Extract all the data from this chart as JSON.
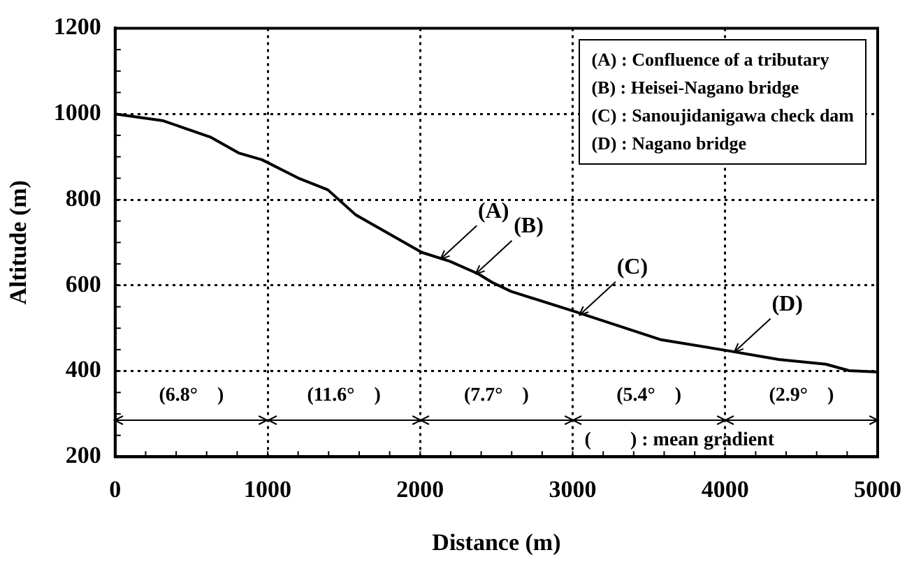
{
  "chart_data": {
    "type": "line",
    "xlabel": "Distance (m)",
    "ylabel": "Altitude (m)",
    "x": [
      0,
      316,
      624,
      809,
      963,
      1209,
      1394,
      1579,
      2010,
      2195,
      2380,
      2472,
      2595,
      3022,
      3581,
      4043,
      4351,
      4660,
      4813,
      4983,
      5000
    ],
    "series": [
      {
        "color": "#000000",
        "values": [
          1000,
          984,
          946,
          909,
          893,
          849,
          823,
          764,
          677,
          656,
          627,
          607,
          586,
          538,
          473,
          446,
          427,
          416,
          401,
          398,
          398
        ]
      }
    ],
    "xlim": [
      0,
      5000
    ],
    "xticks": [
      0,
      1000,
      2000,
      3000,
      4000,
      5000
    ],
    "ylim": [
      200,
      1200
    ],
    "yticks": [
      200,
      400,
      600,
      800,
      1000,
      1200
    ],
    "grid": true,
    "legend": false,
    "marker": "none",
    "line_style": "solid",
    "annotations": [
      {
        "text": "(A)",
        "x": 2133,
        "y": 661
      },
      {
        "text": "(B)",
        "x": 2363,
        "y": 626
      },
      {
        "text": "(C)",
        "x": 3043,
        "y": 530
      },
      {
        "text": "(D)",
        "x": 4059,
        "y": 444
      },
      "(A) : Confluence of a tributary",
      "(B) : Heisei-Nagano bridge",
      "(C) : Sanoujidanigawa check dam",
      "(D) : Nagano bridge",
      "(6.8°　)",
      "(11.6°　)",
      "(7.7°　)",
      "(5.4°　)",
      "(2.9°　)",
      "(　　) : mean gradient"
    ]
  }
}
